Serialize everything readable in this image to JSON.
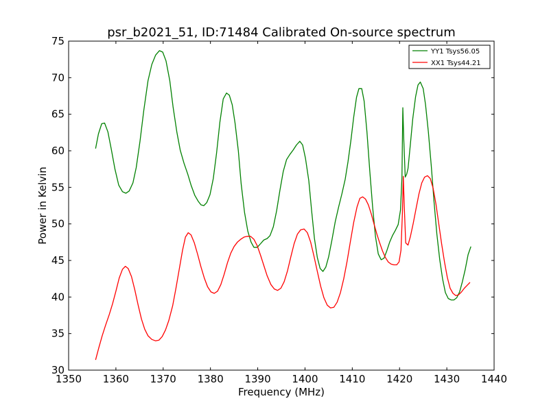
{
  "chart_data": {
    "type": "line",
    "title": "psr_b2021_51, ID:71484 Calibrated On-source spectrum",
    "xlabel": "Frequency (MHz)",
    "ylabel": "Power in Kelvin",
    "xlim": [
      1350,
      1440
    ],
    "ylim": [
      30,
      75
    ],
    "xticks": [
      1350,
      1360,
      1370,
      1380,
      1390,
      1400,
      1410,
      1420,
      1430,
      1440
    ],
    "yticks": [
      30,
      35,
      40,
      45,
      50,
      55,
      60,
      65,
      70,
      75
    ],
    "grid": false,
    "legend_position": "top-right",
    "series": [
      {
        "name": "YY1 Tsys56.05",
        "color": "#008000",
        "points": [
          [
            1355.7,
            60.3
          ],
          [
            1356.3,
            62.3
          ],
          [
            1357.0,
            63.7
          ],
          [
            1357.6,
            63.8
          ],
          [
            1358.3,
            62.6
          ],
          [
            1359.0,
            60.3
          ],
          [
            1359.8,
            57.5
          ],
          [
            1360.6,
            55.3
          ],
          [
            1361.4,
            54.4
          ],
          [
            1362.1,
            54.2
          ],
          [
            1362.8,
            54.5
          ],
          [
            1363.6,
            55.6
          ],
          [
            1364.3,
            57.7
          ],
          [
            1365.1,
            61.3
          ],
          [
            1365.9,
            65.5
          ],
          [
            1366.8,
            69.6
          ],
          [
            1367.6,
            71.8
          ],
          [
            1368.4,
            73.1
          ],
          [
            1369.2,
            73.7
          ],
          [
            1369.9,
            73.5
          ],
          [
            1370.6,
            72.3
          ],
          [
            1371.4,
            69.6
          ],
          [
            1372.1,
            66.0
          ],
          [
            1372.9,
            62.5
          ],
          [
            1373.6,
            60.1
          ],
          [
            1374.4,
            58.3
          ],
          [
            1375.2,
            56.8
          ],
          [
            1375.9,
            55.3
          ],
          [
            1376.7,
            53.9
          ],
          [
            1377.4,
            53.1
          ],
          [
            1378.0,
            52.6
          ],
          [
            1378.6,
            52.5
          ],
          [
            1379.2,
            52.9
          ],
          [
            1379.9,
            54.0
          ],
          [
            1380.6,
            56.2
          ],
          [
            1381.3,
            59.7
          ],
          [
            1382.0,
            63.9
          ],
          [
            1382.7,
            67.1
          ],
          [
            1383.4,
            67.9
          ],
          [
            1384.0,
            67.6
          ],
          [
            1384.6,
            66.3
          ],
          [
            1385.2,
            63.8
          ],
          [
            1385.9,
            60.0
          ],
          [
            1386.5,
            55.5
          ],
          [
            1387.2,
            51.6
          ],
          [
            1387.9,
            49.0
          ],
          [
            1388.6,
            47.5
          ],
          [
            1389.2,
            46.8
          ],
          [
            1389.9,
            46.8
          ],
          [
            1390.6,
            47.3
          ],
          [
            1391.3,
            47.8
          ],
          [
            1392.0,
            48.0
          ],
          [
            1392.6,
            48.4
          ],
          [
            1393.3,
            49.6
          ],
          [
            1394.0,
            51.8
          ],
          [
            1394.7,
            54.6
          ],
          [
            1395.4,
            57.2
          ],
          [
            1396.1,
            58.8
          ],
          [
            1396.8,
            59.5
          ],
          [
            1397.5,
            60.1
          ],
          [
            1398.2,
            60.8
          ],
          [
            1398.9,
            61.3
          ],
          [
            1399.5,
            60.8
          ],
          [
            1400.1,
            59.0
          ],
          [
            1400.8,
            55.9
          ],
          [
            1401.4,
            51.8
          ],
          [
            1402.0,
            48.0
          ],
          [
            1402.6,
            45.4
          ],
          [
            1403.2,
            43.9
          ],
          [
            1403.8,
            43.5
          ],
          [
            1404.4,
            44.1
          ],
          [
            1405.0,
            45.5
          ],
          [
            1405.7,
            47.8
          ],
          [
            1406.4,
            50.3
          ],
          [
            1407.1,
            52.3
          ],
          [
            1407.8,
            54.1
          ],
          [
            1408.5,
            56.1
          ],
          [
            1409.1,
            58.5
          ],
          [
            1409.7,
            61.4
          ],
          [
            1410.3,
            64.6
          ],
          [
            1410.9,
            67.3
          ],
          [
            1411.4,
            68.5
          ],
          [
            1412.0,
            68.5
          ],
          [
            1412.5,
            66.8
          ],
          [
            1413.1,
            62.6
          ],
          [
            1413.7,
            57.3
          ],
          [
            1414.3,
            52.3
          ],
          [
            1414.9,
            48.3
          ],
          [
            1415.5,
            45.9
          ],
          [
            1416.1,
            45.1
          ],
          [
            1416.7,
            45.3
          ],
          [
            1417.3,
            46.3
          ],
          [
            1417.9,
            47.5
          ],
          [
            1418.5,
            48.4
          ],
          [
            1419.1,
            49.1
          ],
          [
            1419.7,
            49.9
          ],
          [
            1420.2,
            51.9
          ],
          [
            1420.5,
            56.3
          ],
          [
            1420.7,
            65.9
          ],
          [
            1420.9,
            61.5
          ],
          [
            1421.2,
            56.4
          ],
          [
            1421.5,
            56.8
          ],
          [
            1421.8,
            57.6
          ],
          [
            1422.3,
            61.0
          ],
          [
            1422.8,
            64.4
          ],
          [
            1423.4,
            67.4
          ],
          [
            1423.9,
            69.0
          ],
          [
            1424.4,
            69.4
          ],
          [
            1425.0,
            68.5
          ],
          [
            1425.5,
            66.3
          ],
          [
            1426.1,
            62.6
          ],
          [
            1426.7,
            58.0
          ],
          [
            1427.3,
            53.0
          ],
          [
            1427.9,
            48.6
          ],
          [
            1428.5,
            45.1
          ],
          [
            1429.1,
            42.5
          ],
          [
            1429.7,
            40.6
          ],
          [
            1430.3,
            39.8
          ],
          [
            1430.9,
            39.6
          ],
          [
            1431.5,
            39.6
          ],
          [
            1432.1,
            39.9
          ],
          [
            1432.7,
            40.7
          ],
          [
            1433.3,
            42.1
          ],
          [
            1433.9,
            43.8
          ],
          [
            1434.5,
            45.8
          ],
          [
            1435.1,
            46.9
          ]
        ]
      },
      {
        "name": "XX1 Tsys44.21",
        "color": "#ff0000",
        "points": [
          [
            1355.7,
            31.4
          ],
          [
            1356.4,
            33.1
          ],
          [
            1357.1,
            34.7
          ],
          [
            1357.8,
            36.1
          ],
          [
            1358.6,
            37.6
          ],
          [
            1359.3,
            39.1
          ],
          [
            1360.0,
            40.8
          ],
          [
            1360.7,
            42.6
          ],
          [
            1361.4,
            43.8
          ],
          [
            1362.0,
            44.2
          ],
          [
            1362.6,
            43.9
          ],
          [
            1363.3,
            42.8
          ],
          [
            1364.0,
            41.0
          ],
          [
            1364.7,
            38.9
          ],
          [
            1365.4,
            37.0
          ],
          [
            1366.1,
            35.6
          ],
          [
            1366.8,
            34.7
          ],
          [
            1367.6,
            34.2
          ],
          [
            1368.4,
            34.0
          ],
          [
            1369.1,
            34.1
          ],
          [
            1369.8,
            34.6
          ],
          [
            1370.5,
            35.5
          ],
          [
            1371.2,
            36.8
          ],
          [
            1372.0,
            38.8
          ],
          [
            1372.7,
            41.2
          ],
          [
            1373.4,
            43.8
          ],
          [
            1374.1,
            46.4
          ],
          [
            1374.7,
            48.2
          ],
          [
            1375.3,
            48.8
          ],
          [
            1375.9,
            48.5
          ],
          [
            1376.6,
            47.4
          ],
          [
            1377.3,
            45.8
          ],
          [
            1378.0,
            44.1
          ],
          [
            1378.7,
            42.6
          ],
          [
            1379.4,
            41.4
          ],
          [
            1380.1,
            40.7
          ],
          [
            1380.8,
            40.5
          ],
          [
            1381.5,
            40.8
          ],
          [
            1382.2,
            41.7
          ],
          [
            1382.9,
            43.1
          ],
          [
            1383.6,
            44.7
          ],
          [
            1384.3,
            46.0
          ],
          [
            1385.0,
            46.9
          ],
          [
            1385.7,
            47.5
          ],
          [
            1386.4,
            47.9
          ],
          [
            1387.1,
            48.2
          ],
          [
            1387.8,
            48.3
          ],
          [
            1388.5,
            48.3
          ],
          [
            1389.2,
            47.9
          ],
          [
            1389.9,
            47.0
          ],
          [
            1390.6,
            45.7
          ],
          [
            1391.3,
            44.3
          ],
          [
            1392.0,
            42.9
          ],
          [
            1392.8,
            41.7
          ],
          [
            1393.5,
            41.1
          ],
          [
            1394.2,
            40.9
          ],
          [
            1394.9,
            41.2
          ],
          [
            1395.6,
            42.1
          ],
          [
            1396.3,
            43.6
          ],
          [
            1397.0,
            45.5
          ],
          [
            1397.7,
            47.3
          ],
          [
            1398.4,
            48.6
          ],
          [
            1399.1,
            49.2
          ],
          [
            1399.8,
            49.3
          ],
          [
            1400.5,
            48.8
          ],
          [
            1401.2,
            47.5
          ],
          [
            1401.9,
            45.6
          ],
          [
            1402.6,
            43.5
          ],
          [
            1403.3,
            41.5
          ],
          [
            1404.0,
            39.9
          ],
          [
            1404.7,
            38.9
          ],
          [
            1405.4,
            38.5
          ],
          [
            1406.1,
            38.6
          ],
          [
            1406.8,
            39.3
          ],
          [
            1407.5,
            40.6
          ],
          [
            1408.2,
            42.5
          ],
          [
            1408.9,
            44.9
          ],
          [
            1409.6,
            47.6
          ],
          [
            1410.3,
            50.2
          ],
          [
            1411.0,
            52.3
          ],
          [
            1411.6,
            53.5
          ],
          [
            1412.2,
            53.7
          ],
          [
            1412.8,
            53.4
          ],
          [
            1413.4,
            52.6
          ],
          [
            1414.0,
            51.4
          ],
          [
            1414.6,
            50.0
          ],
          [
            1415.2,
            48.6
          ],
          [
            1415.8,
            47.4
          ],
          [
            1416.4,
            46.3
          ],
          [
            1417.0,
            45.4
          ],
          [
            1417.6,
            44.8
          ],
          [
            1418.2,
            44.5
          ],
          [
            1418.8,
            44.4
          ],
          [
            1419.4,
            44.4
          ],
          [
            1419.9,
            44.8
          ],
          [
            1420.3,
            46.4
          ],
          [
            1420.6,
            51.5
          ],
          [
            1420.8,
            56.5
          ],
          [
            1421.0,
            52.4
          ],
          [
            1421.3,
            47.4
          ],
          [
            1421.8,
            47.1
          ],
          [
            1422.3,
            48.3
          ],
          [
            1422.9,
            50.1
          ],
          [
            1423.5,
            52.1
          ],
          [
            1424.1,
            54.1
          ],
          [
            1424.7,
            55.6
          ],
          [
            1425.3,
            56.4
          ],
          [
            1425.9,
            56.6
          ],
          [
            1426.5,
            56.2
          ],
          [
            1427.1,
            54.9
          ],
          [
            1427.7,
            52.7
          ],
          [
            1428.3,
            50.0
          ],
          [
            1428.9,
            47.3
          ],
          [
            1429.5,
            44.8
          ],
          [
            1430.1,
            42.7
          ],
          [
            1430.7,
            41.2
          ],
          [
            1431.3,
            40.5
          ],
          [
            1431.9,
            40.2
          ],
          [
            1432.5,
            40.3
          ],
          [
            1433.1,
            40.7
          ],
          [
            1433.7,
            41.2
          ],
          [
            1434.3,
            41.6
          ],
          [
            1434.9,
            42.0
          ]
        ]
      }
    ]
  }
}
